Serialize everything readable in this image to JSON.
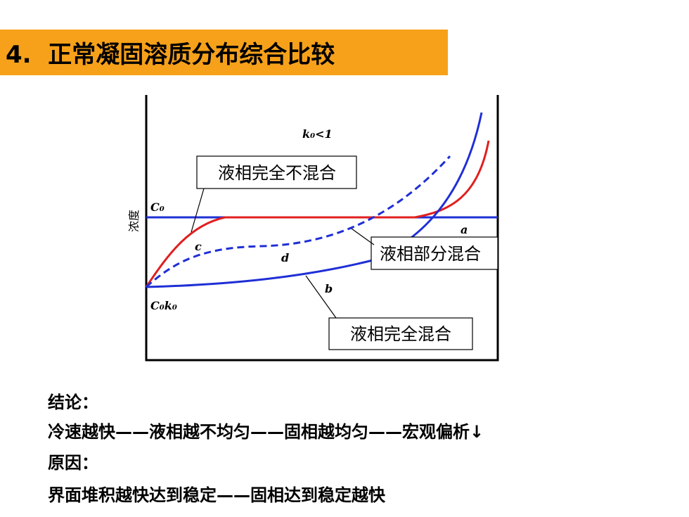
{
  "header": {
    "title": "4.  正常凝固溶质分布综合比较"
  },
  "diagram": {
    "condition": "k₀<1",
    "y_axis_label": "浓度",
    "c0_label": "C₀",
    "c0k0_label": "C₀k₀",
    "curves": [
      {
        "label": "a"
      },
      {
        "label": "b"
      },
      {
        "label": "c"
      },
      {
        "label": "d"
      }
    ],
    "callouts": [
      {
        "text": "液相完全不混合"
      },
      {
        "text": "液相部分混合"
      },
      {
        "text": "液相完全混合"
      }
    ]
  },
  "body": {
    "lines": [
      "结论：",
      "冷速越快——液相越不均匀——固相越均匀——宏观偏析↓",
      "原因：",
      "界面堆积越快达到稳定——固相达到稳定越快"
    ]
  }
}
